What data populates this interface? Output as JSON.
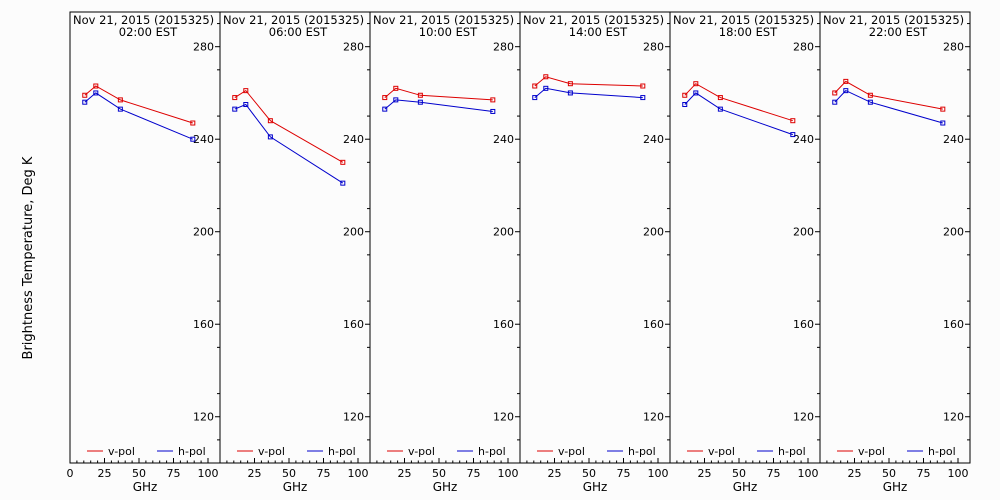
{
  "figure": {
    "ylabel": "Brightness Temperature, Deg K",
    "background": "#fcfcfc",
    "vpol_color": "#dd0000",
    "hpol_color": "#0000cc"
  },
  "chart_data": [
    {
      "type": "line",
      "title": "Nov 21, 2015 (2015325)",
      "subtitle": "02:00 EST",
      "xlabel": "GHz",
      "ylabel": "Brightness Temperature, Deg K",
      "xlim": [
        0,
        100
      ],
      "ylim": [
        100,
        295
      ],
      "xticks": [
        0,
        25,
        50,
        75,
        100
      ],
      "yticks": [
        120,
        160,
        200,
        240,
        280
      ],
      "legend": "bottom",
      "series": [
        {
          "name": "v-pol",
          "color": "#dd0000",
          "x": [
            10.7,
            18.7,
            36.5,
            89.0
          ],
          "y": [
            259,
            263,
            257,
            247
          ]
        },
        {
          "name": "h-pol",
          "color": "#0000cc",
          "x": [
            10.7,
            18.7,
            36.5,
            89.0
          ],
          "y": [
            256,
            260,
            253,
            240
          ]
        }
      ]
    },
    {
      "type": "line",
      "title": "Nov 21, 2015 (2015325)",
      "subtitle": "06:00 EST",
      "xlabel": "GHz",
      "xlim": [
        0,
        100
      ],
      "ylim": [
        100,
        295
      ],
      "xticks": [
        0,
        25,
        50,
        75,
        100
      ],
      "yticks": [
        120,
        160,
        200,
        240,
        280
      ],
      "legend": "bottom",
      "series": [
        {
          "name": "v-pol",
          "color": "#dd0000",
          "x": [
            10.7,
            18.7,
            36.5,
            89.0
          ],
          "y": [
            258,
            261,
            248,
            230
          ]
        },
        {
          "name": "h-pol",
          "color": "#0000cc",
          "x": [
            10.7,
            18.7,
            36.5,
            89.0
          ],
          "y": [
            253,
            255,
            241,
            221
          ]
        }
      ]
    },
    {
      "type": "line",
      "title": "Nov 21, 2015 (2015325)",
      "subtitle": "10:00 EST",
      "xlabel": "GHz",
      "xlim": [
        0,
        100
      ],
      "ylim": [
        100,
        295
      ],
      "xticks": [
        0,
        25,
        50,
        75,
        100
      ],
      "yticks": [
        120,
        160,
        200,
        240,
        280
      ],
      "legend": "bottom",
      "series": [
        {
          "name": "v-pol",
          "color": "#dd0000",
          "x": [
            10.7,
            18.7,
            36.5,
            89.0
          ],
          "y": [
            258,
            262,
            259,
            257
          ]
        },
        {
          "name": "h-pol",
          "color": "#0000cc",
          "x": [
            10.7,
            18.7,
            36.5,
            89.0
          ],
          "y": [
            253,
            257,
            256,
            252
          ]
        }
      ]
    },
    {
      "type": "line",
      "title": "Nov 21, 2015 (2015325)",
      "subtitle": "14:00 EST",
      "xlabel": "GHz",
      "xlim": [
        0,
        100
      ],
      "ylim": [
        100,
        295
      ],
      "xticks": [
        0,
        25,
        50,
        75,
        100
      ],
      "yticks": [
        120,
        160,
        200,
        240,
        280
      ],
      "legend": "bottom",
      "series": [
        {
          "name": "v-pol",
          "color": "#dd0000",
          "x": [
            10.7,
            18.7,
            36.5,
            89.0
          ],
          "y": [
            263,
            267,
            264,
            263
          ]
        },
        {
          "name": "h-pol",
          "color": "#0000cc",
          "x": [
            10.7,
            18.7,
            36.5,
            89.0
          ],
          "y": [
            258,
            262,
            260,
            258
          ]
        }
      ]
    },
    {
      "type": "line",
      "title": "Nov 21, 2015 (2015325)",
      "subtitle": "18:00 EST",
      "xlabel": "GHz",
      "xlim": [
        0,
        100
      ],
      "ylim": [
        100,
        295
      ],
      "xticks": [
        0,
        25,
        50,
        75,
        100
      ],
      "yticks": [
        120,
        160,
        200,
        240,
        280
      ],
      "legend": "bottom",
      "series": [
        {
          "name": "v-pol",
          "color": "#dd0000",
          "x": [
            10.7,
            18.7,
            36.5,
            89.0
          ],
          "y": [
            259,
            264,
            258,
            248
          ]
        },
        {
          "name": "h-pol",
          "color": "#0000cc",
          "x": [
            10.7,
            18.7,
            36.5,
            89.0
          ],
          "y": [
            255,
            260,
            253,
            242
          ]
        }
      ]
    },
    {
      "type": "line",
      "title": "Nov 21, 2015 (2015325)",
      "subtitle": "22:00 EST",
      "xlabel": "GHz",
      "xlim": [
        0,
        100
      ],
      "ylim": [
        100,
        295
      ],
      "xticks": [
        0,
        25,
        50,
        75,
        100
      ],
      "yticks": [
        120,
        160,
        200,
        240,
        280
      ],
      "legend": "bottom",
      "series": [
        {
          "name": "v-pol",
          "color": "#dd0000",
          "x": [
            10.7,
            18.7,
            36.5,
            89.0
          ],
          "y": [
            260,
            265,
            259,
            253
          ]
        },
        {
          "name": "h-pol",
          "color": "#0000cc",
          "x": [
            10.7,
            18.7,
            36.5,
            89.0
          ],
          "y": [
            256,
            261,
            256,
            247
          ]
        }
      ]
    }
  ]
}
